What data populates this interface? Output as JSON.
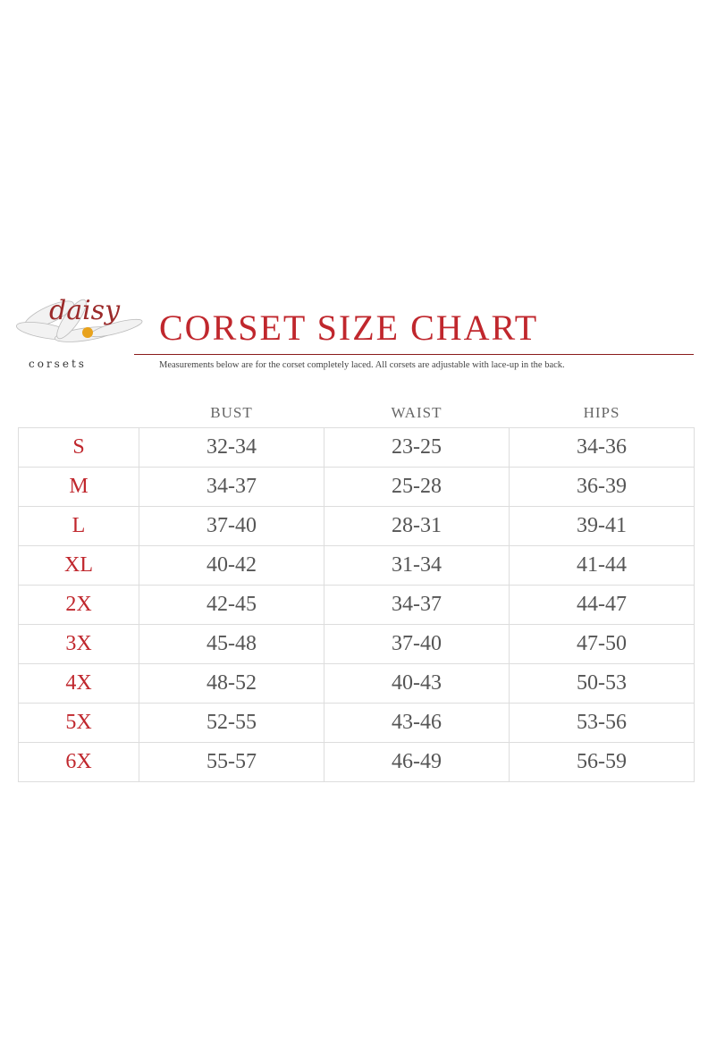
{
  "logo": {
    "name": "daisy",
    "tagline": "corsets"
  },
  "header": {
    "title": "CORSET SIZE CHART",
    "note": "Measurements below are for the corset completely laced.  All corsets are adjustable with lace-up in the back."
  },
  "table": {
    "headers": [
      "BUST",
      "WAIST",
      "HIPS"
    ],
    "rows": [
      [
        "S",
        "32-34",
        "23-25",
        "34-36"
      ],
      [
        "M",
        "34-37",
        "25-28",
        "36-39"
      ],
      [
        "L",
        "37-40",
        "28-31",
        "39-41"
      ],
      [
        "XL",
        "40-42",
        "31-34",
        "41-44"
      ],
      [
        "2X",
        "42-45",
        "34-37",
        "44-47"
      ],
      [
        "3X",
        "45-48",
        "37-40",
        "47-50"
      ],
      [
        "4X",
        "48-52",
        "40-43",
        "50-53"
      ],
      [
        "5X",
        "52-55",
        "43-46",
        "53-56"
      ],
      [
        "6X",
        "55-57",
        "46-49",
        "56-59"
      ]
    ]
  }
}
